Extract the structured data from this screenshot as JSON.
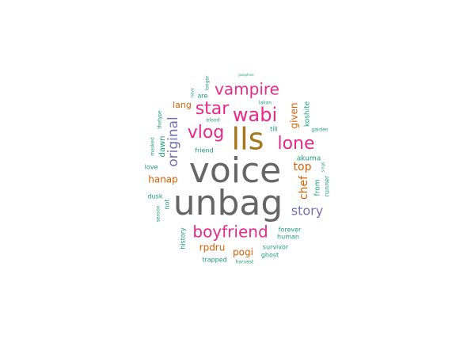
{
  "chart_data": {
    "type": "wordcloud",
    "words": [
      {
        "text": "voice",
        "weight": 100,
        "color": "#666666"
      },
      {
        "text": "unbag",
        "weight": 100,
        "color": "#666666"
      },
      {
        "text": "lls",
        "weight": 80,
        "color": "#A6761D"
      },
      {
        "text": "wabi",
        "weight": 55,
        "color": "#E7298A"
      },
      {
        "text": "vlog",
        "weight": 50,
        "color": "#E7298A"
      },
      {
        "text": "star",
        "weight": 50,
        "color": "#E7298A"
      },
      {
        "text": "lone",
        "weight": 48,
        "color": "#E7298A"
      },
      {
        "text": "vampire",
        "weight": 45,
        "color": "#E7298A"
      },
      {
        "text": "boyfriend",
        "weight": 45,
        "color": "#E7298A"
      },
      {
        "text": "original",
        "weight": 38,
        "color": "#7570B3"
      },
      {
        "text": "story",
        "weight": 38,
        "color": "#7570B3"
      },
      {
        "text": "top",
        "weight": 30,
        "color": "#D95F02"
      },
      {
        "text": "chef",
        "weight": 30,
        "color": "#D95F02"
      },
      {
        "text": "hanap",
        "weight": 28,
        "color": "#D95F02"
      },
      {
        "text": "rpdru",
        "weight": 28,
        "color": "#D95F02"
      },
      {
        "text": "pogi",
        "weight": 28,
        "color": "#D95F02"
      },
      {
        "text": "given",
        "weight": 25,
        "color": "#D95F02"
      },
      {
        "text": "lang",
        "weight": 24,
        "color": "#D95F02"
      },
      {
        "text": "dawn",
        "weight": 20,
        "color": "#1B9E77"
      },
      {
        "text": "koshite",
        "weight": 18,
        "color": "#1B9E77"
      },
      {
        "text": "akuma",
        "weight": 18,
        "color": "#1B9E77"
      },
      {
        "text": "from",
        "weight": 17,
        "color": "#1B9E77"
      },
      {
        "text": "runner",
        "weight": 16,
        "color": "#1B9E77"
      },
      {
        "text": "till",
        "weight": 16,
        "color": "#1B9E77"
      },
      {
        "text": "friend",
        "weight": 16,
        "color": "#1B9E77"
      },
      {
        "text": "love",
        "weight": 16,
        "color": "#1B9E77"
      },
      {
        "text": "dusk",
        "weight": 16,
        "color": "#1B9E77"
      },
      {
        "text": "not",
        "weight": 15,
        "color": "#1B9E77"
      },
      {
        "text": "history",
        "weight": 15,
        "color": "#1B9E77"
      },
      {
        "text": "forever",
        "weight": 16,
        "color": "#1B9E77"
      },
      {
        "text": "human",
        "weight": 15,
        "color": "#1B9E77"
      },
      {
        "text": "survivor",
        "weight": 15,
        "color": "#1B9E77"
      },
      {
        "text": "ghost",
        "weight": 15,
        "color": "#1B9E77"
      },
      {
        "text": "trapped",
        "weight": 15,
        "color": "#1B9E77"
      },
      {
        "text": "are",
        "weight": 14,
        "color": "#1B9E77"
      },
      {
        "text": "blood",
        "weight": 10,
        "color": "#1B9E77"
      },
      {
        "text": "lakan",
        "weight": 9,
        "color": "#1B9E77"
      },
      {
        "text": "harvest",
        "weight": 9,
        "color": "#1B9E77"
      },
      {
        "text": "thetype",
        "weight": 9,
        "color": "#1B9E77"
      },
      {
        "text": "masked",
        "weight": 9,
        "color": "#1B9E77"
      },
      {
        "text": "season",
        "weight": 8,
        "color": "#1B9E77"
      },
      {
        "text": "longer",
        "weight": 8,
        "color": "#1B9E77"
      },
      {
        "text": "garden",
        "weight": 8,
        "color": "#1B9E77"
      },
      {
        "text": "sings",
        "weight": 7,
        "color": "#1B9E77"
      },
      {
        "text": "have",
        "weight": 7,
        "color": "#1B9E77"
      },
      {
        "text": "josephine",
        "weight": 6,
        "color": "#1B9E77"
      }
    ]
  }
}
